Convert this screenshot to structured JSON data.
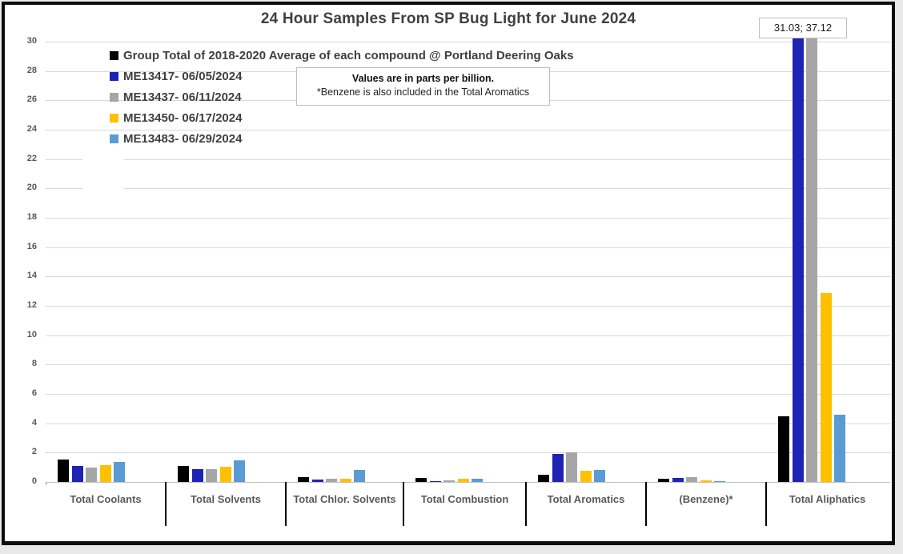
{
  "title": "24 Hour Samples From SP Bug Light for June 2024",
  "annotation_label": "31.03; 37.12",
  "note_box": {
    "line1": "Values are in parts per billion.",
    "line2": "*Benzene is also included in the Total Aromatics"
  },
  "colors": {
    "grid": "#d9d9d9",
    "axis_text": "#595959",
    "title_text": "#404040",
    "series_black": "#000000",
    "series_dark_blue": "#1f23b4",
    "series_gray": "#a6a6a6",
    "series_gold": "#ffc000",
    "series_light_blue": "#5b9bd5"
  },
  "chart_data": {
    "type": "bar",
    "title": "24 Hour Samples From SP Bug Light for June 2024",
    "xlabel": "",
    "ylabel": "",
    "units_note": "Values are in parts per billion.",
    "ylim": [
      0,
      30
    ],
    "y_ticks": [
      0,
      2,
      4,
      6,
      8,
      10,
      12,
      14,
      16,
      18,
      20,
      22,
      24,
      26,
      28,
      30
    ],
    "grid": true,
    "legend_position": "top-left",
    "categories": [
      "Total Coolants",
      "Total Solvents",
      "Total Chlor. Solvents",
      "Total Combustion",
      "Total Aromatics",
      "(Benzene)*",
      "Total Aliphatics"
    ],
    "series": [
      {
        "name": "Group Total of 2018-2020 Average of each compound @ Portland Deering Oaks",
        "color": "#000000",
        "values": [
          1.55,
          1.1,
          0.35,
          0.25,
          0.5,
          0.2,
          4.5
        ]
      },
      {
        "name": "ME13417- 06/05/2024",
        "color": "#1f23b4",
        "values": [
          1.1,
          0.85,
          0.15,
          0.05,
          1.9,
          0.3,
          31.03
        ]
      },
      {
        "name": "ME13437- 06/11/2024",
        "color": "#a6a6a6",
        "values": [
          1.0,
          0.9,
          0.2,
          0.1,
          2.0,
          0.35,
          37.12
        ]
      },
      {
        "name": "ME13450- 06/17/2024",
        "color": "#ffc000",
        "values": [
          1.15,
          1.05,
          0.2,
          0.2,
          0.75,
          0.1,
          12.9
        ]
      },
      {
        "name": "ME13483- 06/29/2024",
        "color": "#5b9bd5",
        "values": [
          1.35,
          1.45,
          0.8,
          0.2,
          0.8,
          0.05,
          4.6
        ]
      }
    ],
    "annotations": [
      {
        "text": "31.03; 37.12",
        "refers_to": "Total Aliphatics bars for ME13417 and ME13437 (clipped at axis max 30)"
      }
    ]
  }
}
